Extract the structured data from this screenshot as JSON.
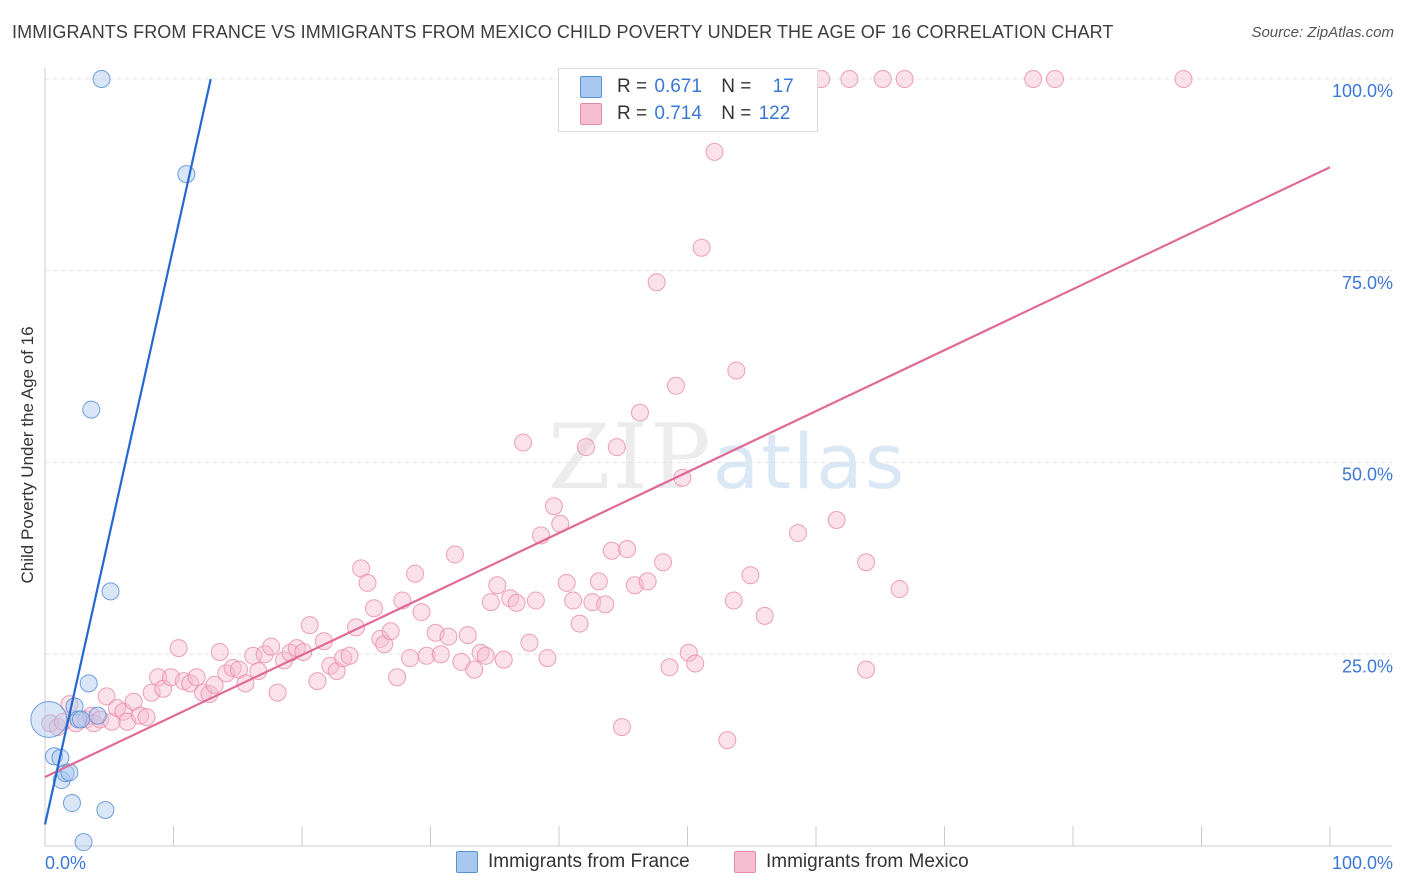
{
  "title": "IMMIGRANTS FROM FRANCE VS IMMIGRANTS FROM MEXICO CHILD POVERTY UNDER THE AGE OF 16 CORRELATION CHART",
  "source": "Source: ZipAtlas.com",
  "watermark": {
    "zip": "ZIP",
    "atlas": "atlas"
  },
  "legend_top": {
    "france": {
      "r_label": "R =",
      "r_value": "0.671",
      "n_label": "N =",
      "n_value": "17"
    },
    "mexico": {
      "r_label": "R =",
      "r_value": "0.714",
      "n_label": "N =",
      "n_value": "122"
    }
  },
  "legend_bottom": {
    "france": "Immigrants from France",
    "mexico": "Immigrants from Mexico"
  },
  "colors": {
    "france_fill": "#a9c8f0",
    "france_stroke": "#5b8fd6",
    "france_line": "#2468d1",
    "mexico_fill": "#f7bdd0",
    "mexico_stroke": "#e989aa",
    "mexico_line": "#e06a96",
    "tick_text": "#3b78d6",
    "grid": "#e4e4e4"
  },
  "chart_data": {
    "type": "scatter",
    "title": "IMMIGRANTS FROM FRANCE VS IMMIGRANTS FROM MEXICO CHILD POVERTY UNDER THE AGE OF 16 CORRELATION CHART",
    "xlabel": "",
    "ylabel": "Child Poverty Under the Age of 16",
    "xlim": [
      0,
      100
    ],
    "ylim": [
      0,
      100
    ],
    "x_tick_labels": [
      "0.0%",
      "100.0%"
    ],
    "y_ticks": [
      25,
      50,
      75,
      100
    ],
    "y_tick_labels": [
      "25.0%",
      "50.0%",
      "75.0%",
      "100.0%"
    ],
    "grid": true,
    "series": [
      {
        "name": "Immigrants from France",
        "r": 0.671,
        "n": 17,
        "points": [
          [
            0.3,
            16.5
          ],
          [
            0.7,
            11.7
          ],
          [
            1.2,
            11.5
          ],
          [
            1.3,
            8.6
          ],
          [
            1.6,
            9.5
          ],
          [
            1.9,
            9.6
          ],
          [
            2.1,
            5.6
          ],
          [
            2.3,
            18.2
          ],
          [
            2.6,
            16.5
          ],
          [
            2.8,
            16.5
          ],
          [
            3.0,
            0.5
          ],
          [
            3.4,
            21.2
          ],
          [
            4.1,
            17.0
          ],
          [
            4.7,
            4.7
          ],
          [
            3.6,
            56.9
          ],
          [
            4.4,
            100
          ],
          [
            5.1,
            33.2
          ],
          [
            11.0,
            87.6
          ]
        ],
        "big_point_x": 0.3,
        "trend": {
          "x": [
            0,
            12.9
          ],
          "y": [
            2.8,
            100
          ]
        }
      },
      {
        "name": "Immigrants from Mexico",
        "r": 0.714,
        "n": 122,
        "points": [
          [
            0.4,
            16.0
          ],
          [
            1.0,
            15.5
          ],
          [
            1.4,
            16.2
          ],
          [
            1.9,
            18.5
          ],
          [
            2.4,
            16.0
          ],
          [
            3.2,
            16.5
          ],
          [
            3.6,
            17.0
          ],
          [
            3.8,
            16.0
          ],
          [
            4.3,
            16.5
          ],
          [
            4.8,
            19.5
          ],
          [
            5.2,
            16.2
          ],
          [
            5.6,
            18.0
          ],
          [
            6.1,
            17.5
          ],
          [
            6.4,
            16.2
          ],
          [
            6.9,
            18.8
          ],
          [
            7.4,
            17.0
          ],
          [
            7.9,
            16.8
          ],
          [
            8.3,
            20.0
          ],
          [
            8.8,
            22.0
          ],
          [
            9.2,
            20.5
          ],
          [
            9.8,
            22.0
          ],
          [
            10.4,
            25.8
          ],
          [
            10.8,
            21.5
          ],
          [
            11.3,
            21.2
          ],
          [
            11.8,
            22.0
          ],
          [
            12.3,
            20.0
          ],
          [
            12.8,
            19.8
          ],
          [
            13.2,
            21.0
          ],
          [
            13.6,
            25.3
          ],
          [
            14.1,
            22.5
          ],
          [
            14.6,
            23.2
          ],
          [
            15.1,
            23.0
          ],
          [
            15.6,
            21.2
          ],
          [
            16.2,
            24.8
          ],
          [
            16.6,
            22.8
          ],
          [
            17.1,
            25.0
          ],
          [
            17.6,
            26.0
          ],
          [
            18.1,
            20.0
          ],
          [
            18.6,
            24.2
          ],
          [
            19.1,
            25.2
          ],
          [
            19.6,
            25.8
          ],
          [
            20.1,
            25.3
          ],
          [
            20.6,
            28.8
          ],
          [
            21.2,
            21.5
          ],
          [
            21.7,
            26.7
          ],
          [
            22.2,
            23.5
          ],
          [
            22.7,
            22.8
          ],
          [
            23.2,
            24.5
          ],
          [
            23.7,
            24.8
          ],
          [
            24.2,
            28.5
          ],
          [
            24.6,
            36.2
          ],
          [
            25.1,
            34.3
          ],
          [
            25.6,
            31.0
          ],
          [
            26.1,
            27.0
          ],
          [
            26.4,
            26.3
          ],
          [
            26.9,
            28.0
          ],
          [
            27.4,
            22.0
          ],
          [
            27.8,
            32.0
          ],
          [
            28.4,
            24.5
          ],
          [
            28.8,
            35.5
          ],
          [
            29.3,
            30.5
          ],
          [
            29.7,
            24.8
          ],
          [
            30.4,
            27.8
          ],
          [
            30.8,
            25.0
          ],
          [
            31.4,
            27.3
          ],
          [
            31.9,
            38.0
          ],
          [
            32.4,
            24.0
          ],
          [
            32.9,
            27.5
          ],
          [
            33.4,
            23.0
          ],
          [
            33.9,
            25.2
          ],
          [
            34.3,
            24.8
          ],
          [
            34.7,
            31.8
          ],
          [
            35.2,
            34.0
          ],
          [
            35.7,
            24.3
          ],
          [
            36.2,
            32.3
          ],
          [
            36.7,
            31.7
          ],
          [
            37.2,
            52.6
          ],
          [
            37.7,
            26.5
          ],
          [
            38.2,
            32.0
          ],
          [
            38.6,
            40.5
          ],
          [
            39.1,
            24.5
          ],
          [
            39.6,
            44.3
          ],
          [
            40.1,
            42.0
          ],
          [
            40.6,
            34.3
          ],
          [
            41.1,
            32.0
          ],
          [
            41.6,
            29.0
          ],
          [
            42.1,
            52.0
          ],
          [
            42.6,
            31.8
          ],
          [
            43.1,
            34.5
          ],
          [
            43.6,
            31.5
          ],
          [
            44.1,
            38.5
          ],
          [
            44.5,
            52.0
          ],
          [
            44.9,
            15.5
          ],
          [
            45.3,
            38.7
          ],
          [
            45.9,
            34.0
          ],
          [
            46.3,
            56.5
          ],
          [
            46.9,
            34.5
          ],
          [
            47.6,
            73.5
          ],
          [
            48.1,
            37.0
          ],
          [
            48.6,
            23.3
          ],
          [
            49.1,
            60.0
          ],
          [
            49.6,
            48.0
          ],
          [
            50.1,
            25.2
          ],
          [
            50.6,
            23.8
          ],
          [
            51.1,
            78.0
          ],
          [
            52.1,
            90.5
          ],
          [
            53.1,
            13.8
          ],
          [
            53.6,
            32.0
          ],
          [
            53.8,
            62.0
          ],
          [
            54.9,
            35.3
          ],
          [
            56.0,
            30.0
          ],
          [
            58.6,
            40.8
          ],
          [
            60.4,
            100
          ],
          [
            61.6,
            42.5
          ],
          [
            62.6,
            100
          ],
          [
            63.9,
            37.0
          ],
          [
            63.9,
            23.0
          ],
          [
            65.2,
            100
          ],
          [
            66.5,
            33.5
          ],
          [
            66.9,
            100
          ],
          [
            76.9,
            100
          ],
          [
            78.6,
            100
          ],
          [
            88.6,
            100
          ]
        ],
        "trend": {
          "x": [
            0,
            100
          ],
          "y": [
            9.0,
            88.5
          ]
        }
      }
    ]
  }
}
